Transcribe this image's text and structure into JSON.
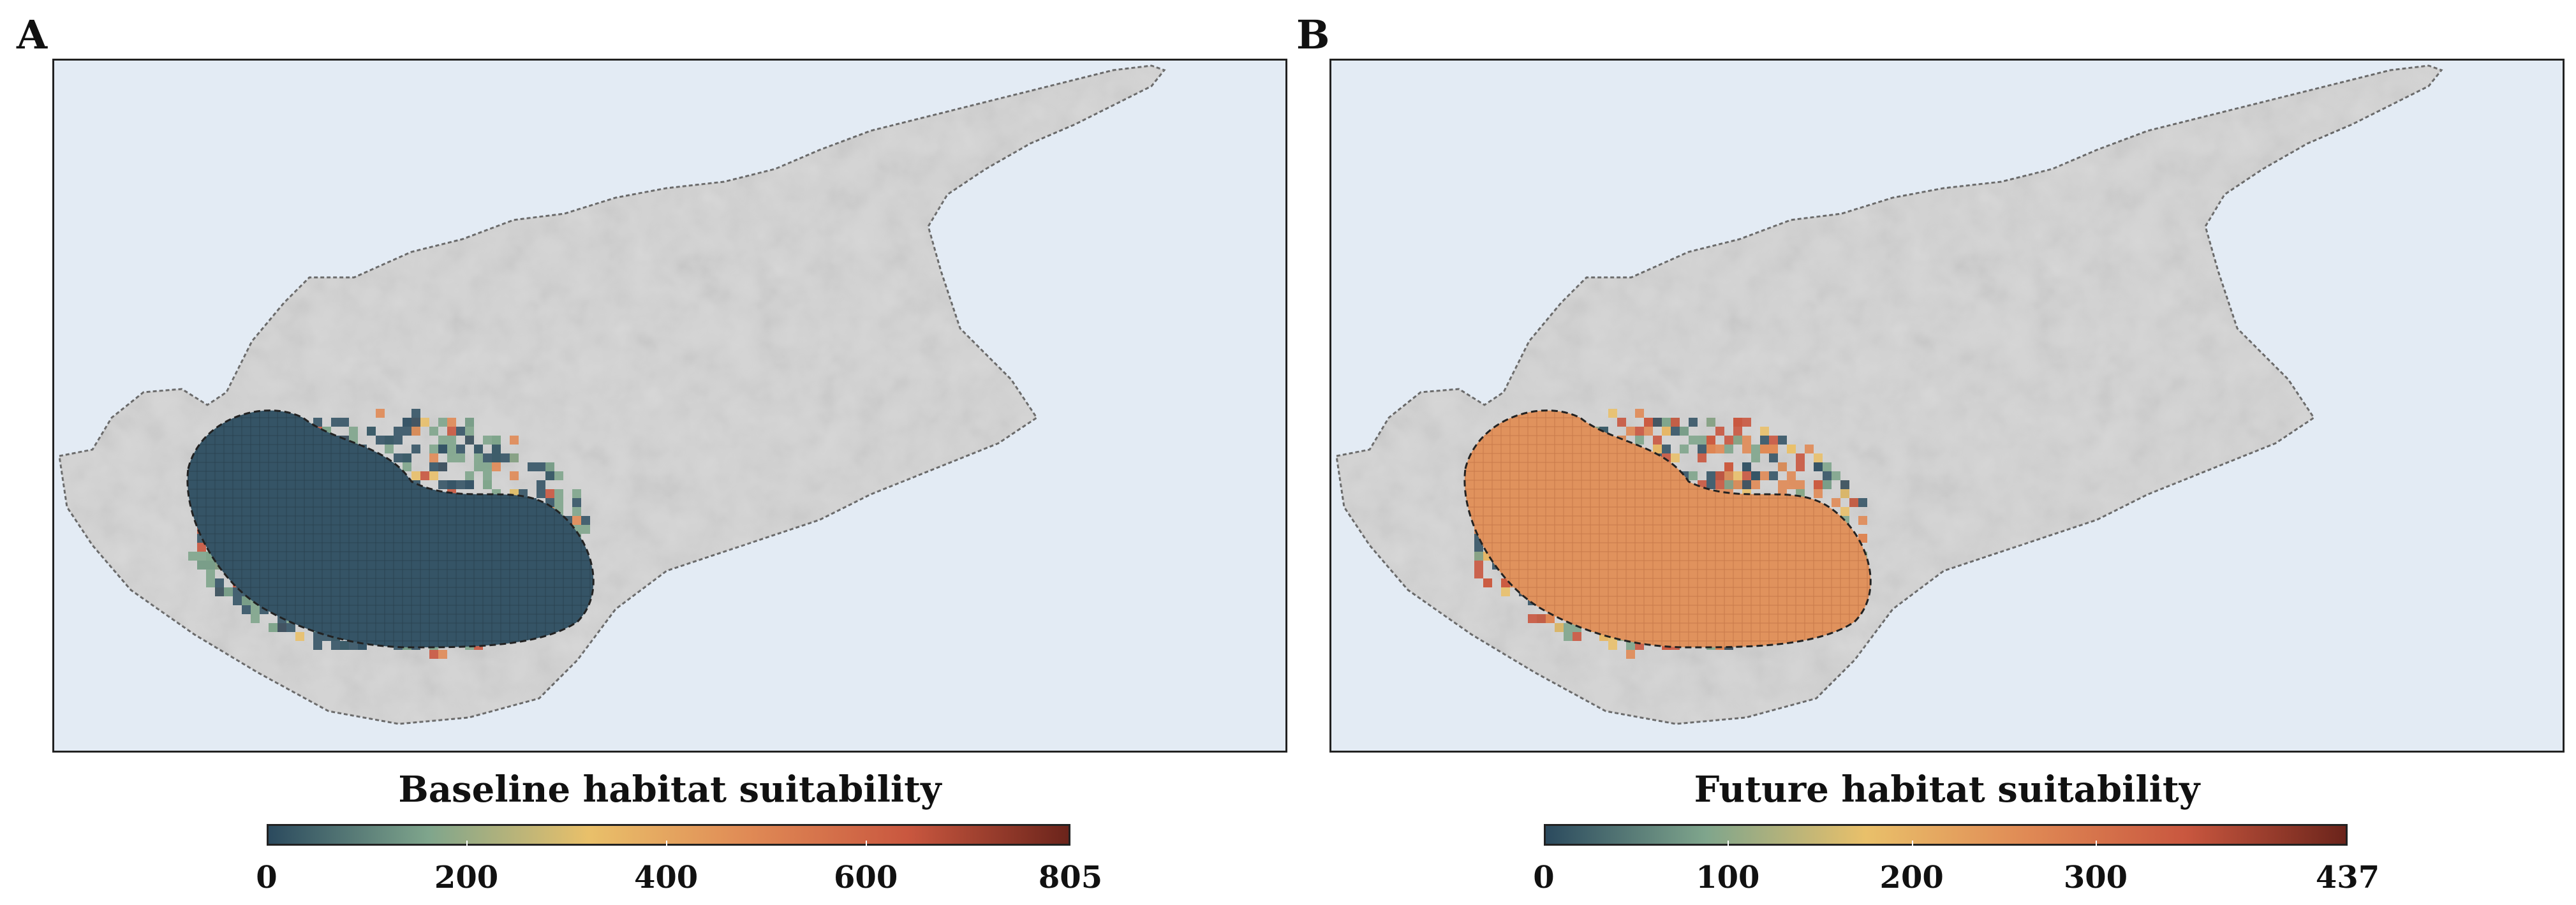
{
  "panels": [
    {
      "label": "A",
      "colorbar": {
        "title": "Baseline habitat suitability",
        "min": 0,
        "max": 805,
        "ticks": [
          "0",
          "200",
          "400",
          "600",
          "805"
        ],
        "tick_values": [
          0,
          200,
          400,
          600,
          805
        ],
        "colors": [
          "#2b4a5e",
          "#7fa58c",
          "#e9c06a",
          "#e08a55",
          "#c9573f",
          "#6b241b"
        ]
      },
      "suitability_level": 0.2
    },
    {
      "label": "B",
      "colorbar": {
        "title": "Future habitat suitability",
        "min": 0,
        "max": 437,
        "ticks": [
          "0",
          "100",
          "200",
          "300",
          "437"
        ],
        "tick_values": [
          0,
          100,
          200,
          300,
          437
        ],
        "colors": [
          "#2b4a5e",
          "#7fa58c",
          "#e9c06a",
          "#e08a55",
          "#c9573f",
          "#6b241b"
        ]
      },
      "suitability_level": 0.6
    }
  ],
  "colors": {
    "sea": "#e3ebf4",
    "land": "#d4d4d4",
    "coast": "#666666",
    "low": "#355466",
    "mid": "#e3a25f",
    "high": "#c4533d"
  }
}
